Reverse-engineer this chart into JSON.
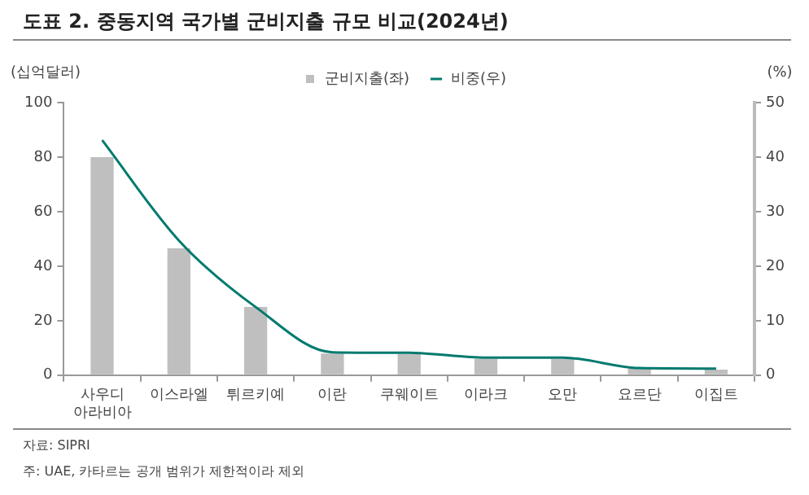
{
  "chart_data": {
    "type": "bar",
    "title": "도표 2. 중동지역 국가별 군비지출 규모 비교(2024년)",
    "ylabel": "(십억달러)",
    "y2label": "(%)",
    "categories": [
      "사우디 아라비아",
      "이스라엘",
      "튀르키예",
      "이란",
      "쿠웨이트",
      "이라크",
      "오만",
      "요르단",
      "이집트"
    ],
    "series": [
      {
        "name": "군비지출(좌)",
        "color": "#bfbfbf",
        "values": [
          80,
          46.5,
          25,
          7.9,
          7.8,
          6,
          6,
          2.5,
          2
        ]
      },
      {
        "name": "비중(우)",
        "type": "line",
        "axis": "y2",
        "color": "#007a6e",
        "values": [
          43.1,
          24.7,
          12.5,
          4.2,
          4.1,
          3.2,
          3.2,
          1.3,
          1.2
        ]
      }
    ],
    "ylim": [
      0,
      100
    ],
    "yticks": [
      0,
      20,
      40,
      60,
      80,
      100
    ],
    "y2lim": [
      0,
      50
    ],
    "y2ticks": [
      0,
      10,
      20,
      30,
      40,
      50
    ],
    "grid": false,
    "legend": "top",
    "marker": "none",
    "annotations": [
      "자료: SIPRI",
      "주: UAE, 카타르는 공개 범위가 제한적이라 제외"
    ]
  }
}
